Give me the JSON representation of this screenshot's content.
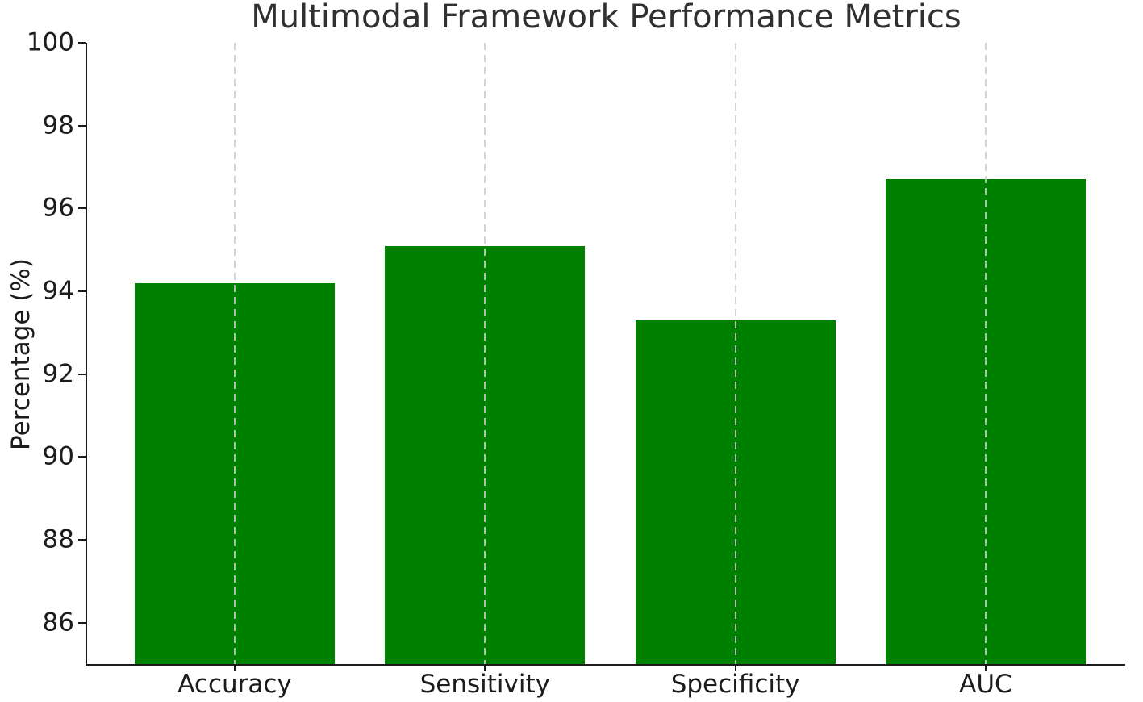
{
  "chart_data": {
    "type": "bar",
    "title": "Multimodal Framework Performance Metrics",
    "xlabel": "",
    "ylabel": "Percentage (%)",
    "categories": [
      "Accuracy",
      "Sensitivity",
      "Specificity",
      "AUC"
    ],
    "values": [
      94.2,
      95.1,
      93.3,
      96.7
    ],
    "ylim": [
      85,
      100
    ],
    "yticks": [
      86,
      88,
      90,
      92,
      94,
      96,
      98,
      100
    ],
    "bar_color": "#008000",
    "gridline_color": "#cccccc",
    "grid": "vertical-dashed-over-bars",
    "axis_color": "#1a1a1a",
    "text_color": "#1c1c1c",
    "background": "#ffffff",
    "legend": "none"
  }
}
